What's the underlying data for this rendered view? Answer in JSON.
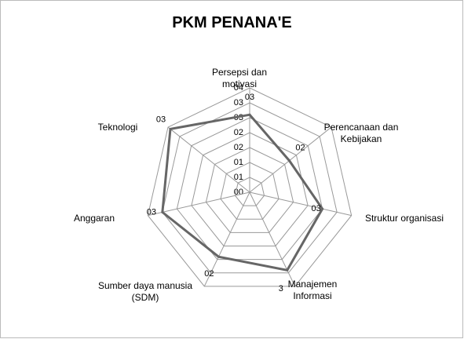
{
  "chart_data": {
    "type": "radar",
    "title": "PKM PENANA'E",
    "categories": [
      "Persepsi dan motivasi",
      "Perencanaan dan Kebijakan",
      "Struktur organisasi",
      "Manajemen Informasi",
      "Sumber daya manusia (SDM)",
      "Anggaran",
      "Teknologi"
    ],
    "series": [
      {
        "name": "PKM PENANA'E",
        "color": "#666666",
        "values": [
          2.6,
          1.7,
          2.5,
          2.9,
          2.4,
          3.0,
          3.4
        ],
        "value_labels": [
          "03",
          "02",
          "03",
          "3",
          "02",
          "03",
          "03"
        ]
      }
    ],
    "rlim": [
      0,
      3.5
    ],
    "rticks": [
      {
        "value": 0,
        "label": "00"
      },
      {
        "value": 0.5,
        "label": "01"
      },
      {
        "value": 1,
        "label": "01"
      },
      {
        "value": 1.5,
        "label": "02"
      },
      {
        "value": 2,
        "label": "02"
      },
      {
        "value": 2.5,
        "label": "03"
      },
      {
        "value": 3,
        "label": "03"
      },
      {
        "value": 3.5,
        "label": "04"
      }
    ],
    "grid": true
  }
}
